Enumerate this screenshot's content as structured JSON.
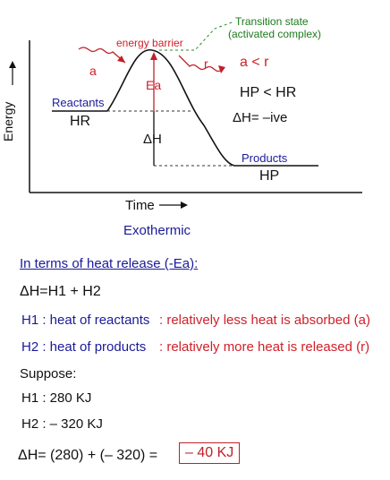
{
  "diagram": {
    "transition_state": "Transition state",
    "activated_complex": "(activated complex)",
    "energy_barrier": "energy barrier",
    "ea_label": "Ea",
    "a_label": "a",
    "r_label": "r",
    "a_lt_r": "a < r",
    "hp_lt_hr": "HP < HR",
    "dh_neg": "ΔH= –ive",
    "reactants": "Reactants",
    "hr": "HR",
    "dh": "ΔH",
    "products": "Products",
    "hp": "HP",
    "y_axis": "Energy",
    "x_axis": "Time",
    "caption": "Exothermic"
  },
  "text": {
    "heading": "In terms of heat release (-Ea):",
    "formula": "ΔH=H1 + H2",
    "h1_line": "H1 : heat of reactants",
    "h1_note": ": relatively less heat is absorbed (a)",
    "h2_line": "H2 : heat of products",
    "h2_note": ": relatively more heat is released (r)",
    "suppose": "Suppose:",
    "h1_val": "H1 : 280 KJ",
    "h2_val": "H2 :  – 320 KJ",
    "calc": "ΔH= (280) + (– 320) =",
    "answer": "– 40 KJ"
  }
}
